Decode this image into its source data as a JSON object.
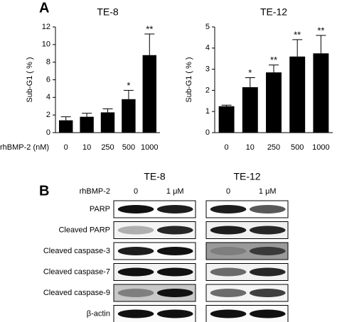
{
  "panel_labels": [
    "A",
    "B"
  ],
  "chart_data": [
    {
      "type": "bar",
      "title": "TE-8",
      "xlabel": "rhBMP-2 (nM)",
      "ylabel": "Sub-G1 ( % )",
      "categories": [
        "0",
        "10",
        "250",
        "500",
        "1000"
      ],
      "values": [
        1.4,
        1.8,
        2.3,
        3.8,
        8.8
      ],
      "errors": [
        0.4,
        0.4,
        0.4,
        1.0,
        2.4
      ],
      "significance": [
        null,
        null,
        null,
        "*",
        "**"
      ],
      "ylim": [
        0,
        12
      ],
      "yticks": [
        0,
        2,
        4,
        6,
        8,
        10,
        12
      ],
      "color": "#000000"
    },
    {
      "type": "bar",
      "title": "TE-12",
      "ylabel": "Sub-G1 ( % )",
      "categories": [
        "0",
        "10",
        "250",
        "500",
        "1000"
      ],
      "values": [
        1.25,
        2.15,
        2.85,
        3.6,
        3.75
      ],
      "errors": [
        0.05,
        0.45,
        0.35,
        0.8,
        0.85
      ],
      "significance": [
        null,
        "*",
        "**",
        "**",
        "**"
      ],
      "ylim": [
        0,
        5
      ],
      "yticks": [
        0,
        1,
        2,
        3,
        4,
        5
      ],
      "color": "#000000"
    }
  ],
  "blot": {
    "treatment_label": "rhBMP-2",
    "groups": [
      {
        "name": "TE-8",
        "lanes": [
          "0",
          "1 μM"
        ]
      },
      {
        "name": "TE-12",
        "lanes": [
          "0",
          "1 μM"
        ]
      }
    ],
    "rows": [
      "PARP",
      "Cleaved PARP",
      "Cleaved caspase-3",
      "Cleaved caspase-7",
      "Cleaved caspase-9",
      "β-actin"
    ]
  }
}
